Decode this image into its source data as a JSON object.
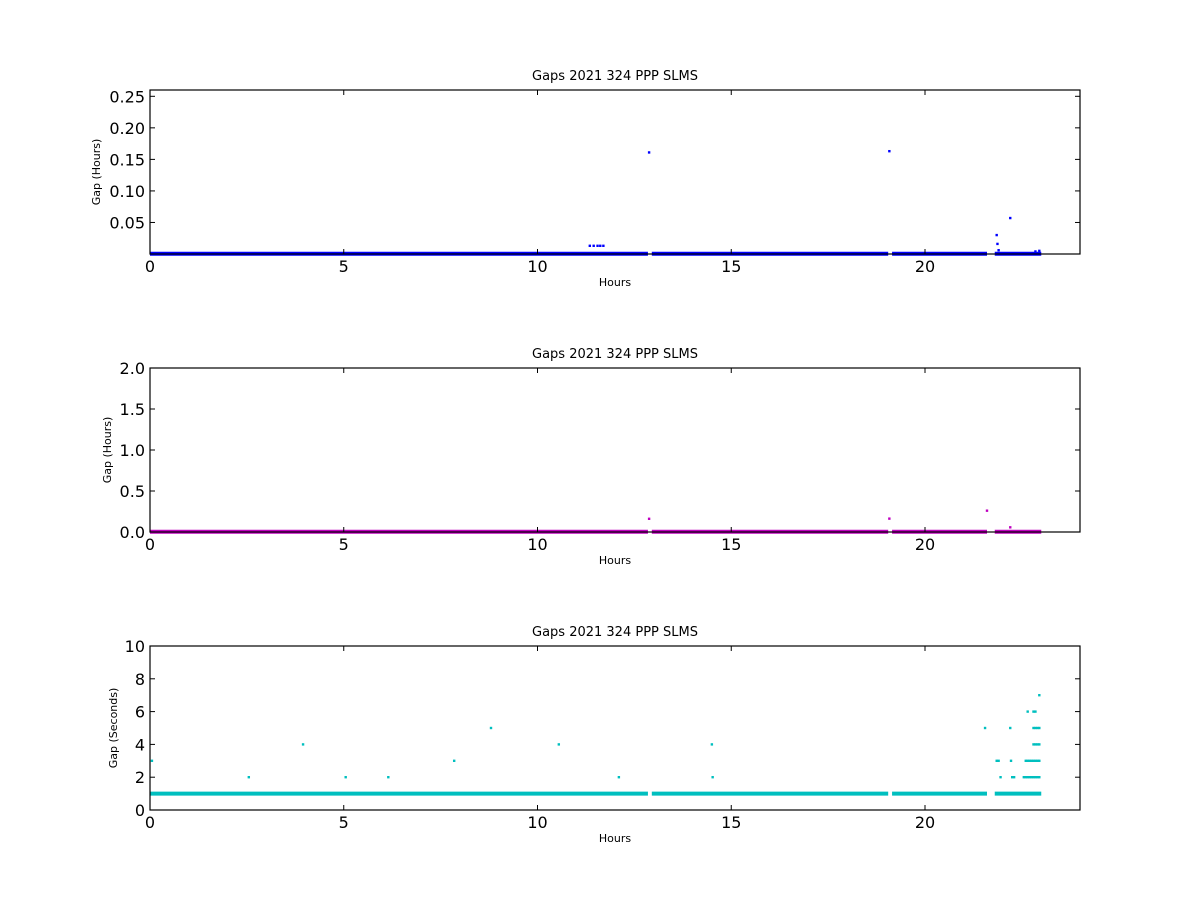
{
  "chart_data": [
    {
      "type": "scatter",
      "title": "Gaps 2021 324 PPP  SLMS",
      "xlabel": "Hours",
      "ylabel": "Gap (Hours)",
      "xlim": [
        0,
        24
      ],
      "ylim": [
        0,
        0.26
      ],
      "xticks": [
        0,
        5,
        10,
        15,
        20
      ],
      "yticks": [
        0.05,
        0.1,
        0.15,
        0.2,
        0.25
      ],
      "ytick_labels": [
        "0.05",
        "0.10",
        "0.15",
        "0.20",
        "0.25"
      ],
      "grid": false,
      "color": "#0000ff",
      "baseline": {
        "value": 0.0003,
        "segments": [
          [
            0,
            12.85
          ],
          [
            12.95,
            19.05
          ],
          [
            19.15,
            21.6
          ],
          [
            21.8,
            23.0
          ]
        ]
      },
      "points": [
        [
          11.35,
          0.013
        ],
        [
          11.45,
          0.013
        ],
        [
          11.55,
          0.013
        ],
        [
          11.62,
          0.013
        ],
        [
          11.7,
          0.013
        ],
        [
          12.88,
          0.161
        ],
        [
          19.08,
          0.163
        ],
        [
          21.85,
          0.03
        ],
        [
          21.87,
          0.016
        ],
        [
          21.9,
          0.006
        ],
        [
          22.2,
          0.057
        ],
        [
          22.85,
          0.004
        ],
        [
          22.95,
          0.005
        ]
      ]
    },
    {
      "type": "scatter",
      "title": "Gaps 2021 324 PPP  SLMS",
      "xlabel": "Hours",
      "ylabel": "Gap (Hours)",
      "xlim": [
        0,
        24
      ],
      "ylim": [
        0,
        2.0
      ],
      "xticks": [
        0,
        5,
        10,
        15,
        20
      ],
      "yticks": [
        0.0,
        0.5,
        1.0,
        1.5,
        2.0
      ],
      "ytick_labels": [
        "0.0",
        "0.5",
        "1.0",
        "1.5",
        "2.0"
      ],
      "grid": false,
      "color": "#bf00bf",
      "baseline": {
        "value": 0.003,
        "segments": [
          [
            0,
            12.85
          ],
          [
            12.95,
            19.05
          ],
          [
            19.15,
            21.6
          ],
          [
            21.8,
            23.0
          ]
        ]
      },
      "points": [
        [
          12.88,
          0.161
        ],
        [
          19.08,
          0.163
        ],
        [
          21.6,
          0.26
        ],
        [
          22.2,
          0.057
        ]
      ]
    },
    {
      "type": "scatter",
      "title": "Gaps 2021 324 PPP  SLMS",
      "xlabel": "Hours",
      "ylabel": "Gap (Seconds)",
      "xlim": [
        0,
        24
      ],
      "ylim": [
        0,
        10
      ],
      "xticks": [
        0,
        5,
        10,
        15,
        20
      ],
      "yticks": [
        0,
        2,
        4,
        6,
        8,
        10
      ],
      "ytick_labels": [
        "0",
        "2",
        "4",
        "6",
        "8",
        "10"
      ],
      "grid": false,
      "color": "#00bfbf",
      "baseline": {
        "value": 1,
        "segments": [
          [
            0,
            12.85
          ],
          [
            12.95,
            19.05
          ],
          [
            19.15,
            21.6
          ],
          [
            21.8,
            23.0
          ]
        ]
      },
      "points": [
        [
          0.05,
          3
        ],
        [
          2.55,
          2
        ],
        [
          3.95,
          4
        ],
        [
          5.05,
          2
        ],
        [
          6.15,
          2
        ],
        [
          7.85,
          3
        ],
        [
          8.8,
          5
        ],
        [
          10.55,
          4
        ],
        [
          12.1,
          2
        ],
        [
          14.5,
          4
        ],
        [
          14.52,
          2
        ],
        [
          21.55,
          5
        ],
        [
          21.85,
          3
        ],
        [
          21.9,
          3
        ],
        [
          21.95,
          2
        ],
        [
          22.2,
          5
        ],
        [
          22.22,
          3
        ],
        [
          22.25,
          2
        ],
        [
          22.3,
          2
        ],
        [
          22.55,
          2
        ],
        [
          22.6,
          2
        ],
        [
          22.65,
          2
        ],
        [
          22.7,
          2
        ],
        [
          22.75,
          2
        ],
        [
          22.8,
          2
        ],
        [
          22.85,
          2
        ],
        [
          22.9,
          2
        ],
        [
          22.95,
          2
        ],
        [
          22.6,
          3
        ],
        [
          22.65,
          3
        ],
        [
          22.7,
          3
        ],
        [
          22.75,
          3
        ],
        [
          22.8,
          3
        ],
        [
          22.85,
          3
        ],
        [
          22.9,
          3
        ],
        [
          22.95,
          3
        ],
        [
          22.65,
          6
        ],
        [
          22.8,
          6
        ],
        [
          22.85,
          6
        ],
        [
          22.8,
          4
        ],
        [
          22.85,
          4
        ],
        [
          22.9,
          4
        ],
        [
          22.95,
          4
        ],
        [
          22.8,
          5
        ],
        [
          22.85,
          5
        ],
        [
          22.9,
          5
        ],
        [
          22.95,
          5
        ],
        [
          22.95,
          7
        ]
      ]
    }
  ]
}
